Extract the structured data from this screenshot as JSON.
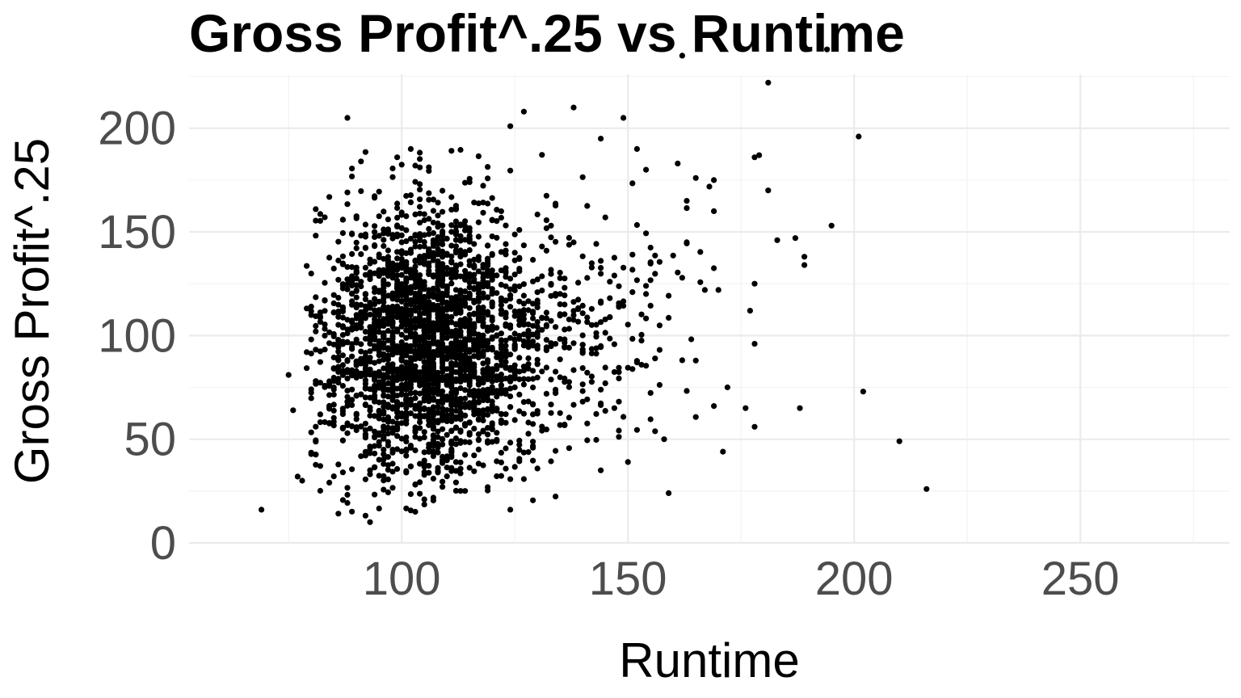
{
  "chart_data": {
    "type": "scatter",
    "title": "Gross Profit^.25 vs Runtime",
    "xlabel": "Runtime",
    "ylabel": "Gross Profit^.25",
    "xlim": [
      53,
      283
    ],
    "ylim": [
      0,
      226
    ],
    "x_ticks": [
      100,
      150,
      200,
      250
    ],
    "y_ticks": [
      0,
      50,
      100,
      150,
      200
    ],
    "x_tick_labels": [
      "100",
      "150",
      "200",
      "250"
    ],
    "y_tick_labels": [
      "0",
      "50",
      "100",
      "150",
      "200"
    ],
    "grid": true,
    "legend": "none",
    "point_color": "#000000",
    "outliers": [
      {
        "x": 69,
        "y": 16
      },
      {
        "x": 75,
        "y": 81
      },
      {
        "x": 76,
        "y": 64
      },
      {
        "x": 77,
        "y": 32
      },
      {
        "x": 78,
        "y": 30
      },
      {
        "x": 79,
        "y": 92
      },
      {
        "x": 82,
        "y": 111
      },
      {
        "x": 88,
        "y": 205
      },
      {
        "x": 91,
        "y": 184
      },
      {
        "x": 93,
        "y": 10
      },
      {
        "x": 99,
        "y": 186
      },
      {
        "x": 102,
        "y": 190
      },
      {
        "x": 103,
        "y": 15
      },
      {
        "x": 124,
        "y": 201
      },
      {
        "x": 124,
        "y": 16
      },
      {
        "x": 127,
        "y": 208
      },
      {
        "x": 138,
        "y": 210
      },
      {
        "x": 144,
        "y": 195
      },
      {
        "x": 144,
        "y": 35
      },
      {
        "x": 149,
        "y": 205
      },
      {
        "x": 150,
        "y": 39
      },
      {
        "x": 152,
        "y": 190
      },
      {
        "x": 154,
        "y": 180
      },
      {
        "x": 158,
        "y": 50
      },
      {
        "x": 159,
        "y": 24
      },
      {
        "x": 161,
        "y": 183
      },
      {
        "x": 162,
        "y": 235
      },
      {
        "x": 163,
        "y": 145
      },
      {
        "x": 165,
        "y": 176
      },
      {
        "x": 167,
        "y": 122
      },
      {
        "x": 169,
        "y": 175
      },
      {
        "x": 169,
        "y": 160
      },
      {
        "x": 169,
        "y": 66
      },
      {
        "x": 170,
        "y": 122
      },
      {
        "x": 171,
        "y": 44
      },
      {
        "x": 172,
        "y": 75
      },
      {
        "x": 176,
        "y": 65
      },
      {
        "x": 177,
        "y": 112
      },
      {
        "x": 178,
        "y": 125
      },
      {
        "x": 178,
        "y": 96
      },
      {
        "x": 178,
        "y": 56
      },
      {
        "x": 178,
        "y": 186
      },
      {
        "x": 179,
        "y": 187
      },
      {
        "x": 181,
        "y": 222
      },
      {
        "x": 181,
        "y": 170
      },
      {
        "x": 183,
        "y": 146
      },
      {
        "x": 187,
        "y": 147
      },
      {
        "x": 188,
        "y": 65
      },
      {
        "x": 189,
        "y": 138
      },
      {
        "x": 189,
        "y": 134
      },
      {
        "x": 194,
        "y": 238
      },
      {
        "x": 195,
        "y": 153
      },
      {
        "x": 201,
        "y": 196
      },
      {
        "x": 202,
        "y": 73
      },
      {
        "x": 210,
        "y": 49
      },
      {
        "x": 216,
        "y": 26
      }
    ]
  }
}
